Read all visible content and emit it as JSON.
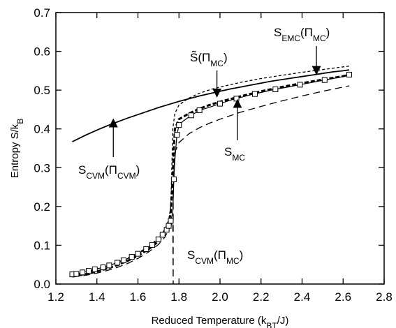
{
  "chart_data": {
    "type": "line",
    "xlabel": "Reduced Temperature (k_BT/J)",
    "ylabel": "Entropy  S/k_B",
    "xlim": [
      1.2,
      2.8
    ],
    "ylim": [
      0.0,
      0.7
    ],
    "xticks": [
      "1.2",
      "1.4",
      "1.6",
      "1.8",
      "2.0",
      "2.2",
      "2.4",
      "2.6",
      "2.8"
    ],
    "yticks": [
      "0.0",
      "0.1",
      "0.2",
      "0.3",
      "0.4",
      "0.5",
      "0.6",
      "0.7"
    ],
    "grid": false,
    "series": [
      {
        "label": "S_CVM(Π_CVM)",
        "style": "solid-thin",
        "points": [
          [
            1.28,
            0.367
          ],
          [
            1.35,
            0.385
          ],
          [
            1.4,
            0.397
          ],
          [
            1.45,
            0.408
          ],
          [
            1.5,
            0.418
          ],
          [
            1.55,
            0.428
          ],
          [
            1.6,
            0.437
          ],
          [
            1.65,
            0.446
          ],
          [
            1.7,
            0.455
          ],
          [
            1.75,
            0.463
          ],
          [
            1.8,
            0.471
          ],
          [
            1.85,
            0.478
          ],
          [
            1.9,
            0.485
          ],
          [
            1.95,
            0.491
          ],
          [
            2.0,
            0.497
          ],
          [
            2.05,
            0.503
          ],
          [
            2.1,
            0.508
          ],
          [
            2.15,
            0.513
          ],
          [
            2.2,
            0.518
          ],
          [
            2.25,
            0.523
          ],
          [
            2.3,
            0.527
          ],
          [
            2.35,
            0.531
          ],
          [
            2.4,
            0.535
          ],
          [
            2.45,
            0.539
          ],
          [
            2.5,
            0.543
          ],
          [
            2.55,
            0.547
          ],
          [
            2.6,
            0.55
          ],
          [
            2.63,
            0.552
          ]
        ]
      },
      {
        "label": "S_EMC(Π_MC)",
        "style": "short-dash",
        "points": [
          [
            1.28,
            0.022
          ],
          [
            1.35,
            0.03
          ],
          [
            1.4,
            0.038
          ],
          [
            1.45,
            0.046
          ],
          [
            1.5,
            0.056
          ],
          [
            1.55,
            0.067
          ],
          [
            1.6,
            0.08
          ],
          [
            1.65,
            0.096
          ],
          [
            1.7,
            0.118
          ],
          [
            1.73,
            0.14
          ],
          [
            1.75,
            0.165
          ],
          [
            1.76,
            0.2
          ],
          [
            1.765,
            0.3
          ],
          [
            1.77,
            0.4
          ],
          [
            1.78,
            0.44
          ],
          [
            1.8,
            0.462
          ],
          [
            1.85,
            0.48
          ],
          [
            1.9,
            0.492
          ],
          [
            1.95,
            0.501
          ],
          [
            2.0,
            0.508
          ],
          [
            2.1,
            0.52
          ],
          [
            2.2,
            0.53
          ],
          [
            2.3,
            0.538
          ],
          [
            2.4,
            0.546
          ],
          [
            2.5,
            0.553
          ],
          [
            2.6,
            0.56
          ],
          [
            2.63,
            0.562
          ]
        ]
      },
      {
        "label": "S̃(Π_MC)",
        "style": "thick-dash",
        "points": [
          [
            1.28,
            0.02
          ],
          [
            1.35,
            0.026
          ],
          [
            1.4,
            0.032
          ],
          [
            1.45,
            0.04
          ],
          [
            1.5,
            0.049
          ],
          [
            1.55,
            0.06
          ],
          [
            1.6,
            0.073
          ],
          [
            1.65,
            0.089
          ],
          [
            1.7,
            0.11
          ],
          [
            1.73,
            0.13
          ],
          [
            1.75,
            0.155
          ],
          [
            1.76,
            0.185
          ],
          [
            1.77,
            0.28
          ],
          [
            1.775,
            0.35
          ],
          [
            1.78,
            0.4
          ],
          [
            1.8,
            0.425
          ],
          [
            1.85,
            0.44
          ],
          [
            1.9,
            0.452
          ],
          [
            1.95,
            0.462
          ],
          [
            2.0,
            0.47
          ],
          [
            2.1,
            0.484
          ],
          [
            2.2,
            0.497
          ],
          [
            2.3,
            0.508
          ],
          [
            2.4,
            0.518
          ],
          [
            2.5,
            0.527
          ],
          [
            2.6,
            0.536
          ],
          [
            2.63,
            0.54
          ]
        ]
      },
      {
        "label": "S_MC",
        "style": "solid-squares",
        "points": [
          [
            1.28,
            0.025
          ],
          [
            1.3,
            0.026
          ],
          [
            1.33,
            0.03
          ],
          [
            1.36,
            0.034
          ],
          [
            1.39,
            0.038
          ],
          [
            1.43,
            0.043
          ],
          [
            1.46,
            0.048
          ],
          [
            1.5,
            0.055
          ],
          [
            1.53,
            0.061
          ],
          [
            1.57,
            0.07
          ],
          [
            1.6,
            0.078
          ],
          [
            1.64,
            0.09
          ],
          [
            1.67,
            0.101
          ],
          [
            1.7,
            0.115
          ],
          [
            1.72,
            0.127
          ],
          [
            1.74,
            0.14
          ],
          [
            1.75,
            0.15
          ],
          [
            1.76,
            0.163
          ],
          [
            1.77,
            0.185
          ],
          [
            1.775,
            0.27
          ],
          [
            1.78,
            0.32
          ],
          [
            1.79,
            0.385
          ],
          [
            1.8,
            0.41
          ],
          [
            1.82,
            0.42
          ],
          [
            1.86,
            0.435
          ],
          [
            1.9,
            0.448
          ],
          [
            1.95,
            0.456
          ],
          [
            2.0,
            0.465
          ],
          [
            2.05,
            0.474
          ],
          [
            2.1,
            0.481
          ],
          [
            2.15,
            0.488
          ],
          [
            2.2,
            0.494
          ],
          [
            2.25,
            0.5
          ],
          [
            2.3,
            0.505
          ],
          [
            2.35,
            0.51
          ],
          [
            2.4,
            0.515
          ],
          [
            2.45,
            0.52
          ],
          [
            2.5,
            0.525
          ],
          [
            2.55,
            0.53
          ],
          [
            2.6,
            0.535
          ],
          [
            2.63,
            0.54
          ]
        ],
        "markers": [
          [
            1.28,
            0.025
          ],
          [
            1.3,
            0.026
          ],
          [
            1.33,
            0.03
          ],
          [
            1.36,
            0.034
          ],
          [
            1.39,
            0.038
          ],
          [
            1.43,
            0.043
          ],
          [
            1.46,
            0.048
          ],
          [
            1.5,
            0.055
          ],
          [
            1.53,
            0.061
          ],
          [
            1.57,
            0.07
          ],
          [
            1.6,
            0.078
          ],
          [
            1.64,
            0.09
          ],
          [
            1.67,
            0.101
          ],
          [
            1.7,
            0.115
          ],
          [
            1.72,
            0.127
          ],
          [
            1.74,
            0.14
          ],
          [
            1.75,
            0.15
          ],
          [
            1.76,
            0.163
          ],
          [
            1.775,
            0.27
          ],
          [
            1.79,
            0.385
          ],
          [
            1.8,
            0.41
          ],
          [
            1.86,
            0.435
          ],
          [
            1.9,
            0.448
          ],
          [
            2.0,
            0.465
          ],
          [
            2.08,
            0.478
          ],
          [
            2.17,
            0.49
          ],
          [
            2.27,
            0.502
          ],
          [
            2.39,
            0.514
          ],
          [
            2.51,
            0.526
          ],
          [
            2.63,
            0.54
          ]
        ]
      },
      {
        "label": "S_CVM(Π_MC)",
        "style": "long-dash",
        "points": [
          [
            1.28,
            0.018
          ],
          [
            1.35,
            0.023
          ],
          [
            1.4,
            0.028
          ],
          [
            1.45,
            0.035
          ],
          [
            1.5,
            0.043
          ],
          [
            1.55,
            0.053
          ],
          [
            1.6,
            0.066
          ],
          [
            1.65,
            0.082
          ],
          [
            1.7,
            0.102
          ],
          [
            1.73,
            0.12
          ],
          [
            1.76,
            0.15
          ],
          [
            1.77,
            0.16
          ],
          [
            1.772,
            0.0
          ],
          [
            1.772,
            0.25
          ],
          [
            1.78,
            0.34
          ],
          [
            1.8,
            0.365
          ],
          [
            1.85,
            0.388
          ],
          [
            1.9,
            0.403
          ],
          [
            1.95,
            0.415
          ],
          [
            2.0,
            0.425
          ],
          [
            2.1,
            0.443
          ],
          [
            2.2,
            0.458
          ],
          [
            2.3,
            0.472
          ],
          [
            2.4,
            0.485
          ],
          [
            2.5,
            0.497
          ],
          [
            2.6,
            0.508
          ],
          [
            2.63,
            0.511
          ]
        ]
      }
    ],
    "annotations": [
      {
        "text": "S_EMC(Π_MC)",
        "arrow_to": [
          2.47,
          0.545
        ]
      },
      {
        "text": "S̃(Π_MC)",
        "arrow_to": [
          1.98,
          0.49
        ]
      },
      {
        "text": "S_MC",
        "arrow_to": [
          2.08,
          0.465
        ]
      },
      {
        "text": "S_CVM(Π_CVM)",
        "arrow_to": [
          1.48,
          0.415
        ]
      },
      {
        "text": "S_CVM(Π_MC)",
        "arrow_to": null
      }
    ]
  }
}
